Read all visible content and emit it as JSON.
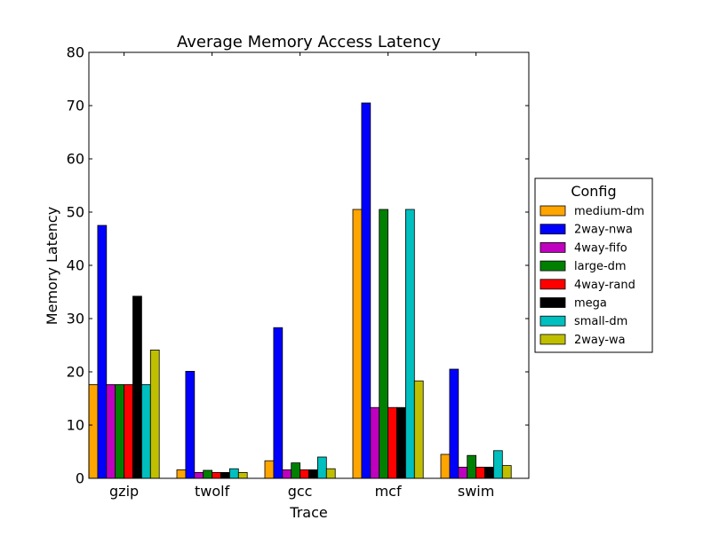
{
  "chart_data": {
    "type": "bar",
    "title": "Average Memory Access Latency",
    "xlabel": "Trace",
    "ylabel": "Memory Latency",
    "ylim": [
      0,
      80
    ],
    "yticks": [
      0,
      10,
      20,
      30,
      40,
      50,
      60,
      70,
      80
    ],
    "categories": [
      "gzip",
      "twolf",
      "gcc",
      "mcf",
      "swim"
    ],
    "legend_title": "Config",
    "legend_position": "outside-right",
    "grid": false,
    "series": [
      {
        "name": "medium-dm",
        "color": "#ffa500",
        "values": [
          17.6,
          1.6,
          3.3,
          50.5,
          4.5
        ]
      },
      {
        "name": "2way-nwa",
        "color": "#0000ff",
        "values": [
          47.5,
          20.1,
          28.3,
          70.5,
          20.5
        ]
      },
      {
        "name": "4way-fifo",
        "color": "#bf00bf",
        "values": [
          17.6,
          1.1,
          1.6,
          13.3,
          2.1
        ]
      },
      {
        "name": "large-dm",
        "color": "#008000",
        "values": [
          17.6,
          1.5,
          2.9,
          50.5,
          4.3
        ]
      },
      {
        "name": "4way-rand",
        "color": "#ff0000",
        "values": [
          17.6,
          1.1,
          1.6,
          13.3,
          2.1
        ]
      },
      {
        "name": "mega",
        "color": "#000000",
        "values": [
          34.2,
          1.1,
          1.6,
          13.3,
          2.1
        ]
      },
      {
        "name": "small-dm",
        "color": "#00bfbf",
        "values": [
          17.6,
          1.8,
          4.0,
          50.5,
          5.2
        ]
      },
      {
        "name": "2way-wa",
        "color": "#bfbf00",
        "values": [
          24.1,
          1.1,
          1.8,
          18.3,
          2.4
        ]
      }
    ]
  }
}
